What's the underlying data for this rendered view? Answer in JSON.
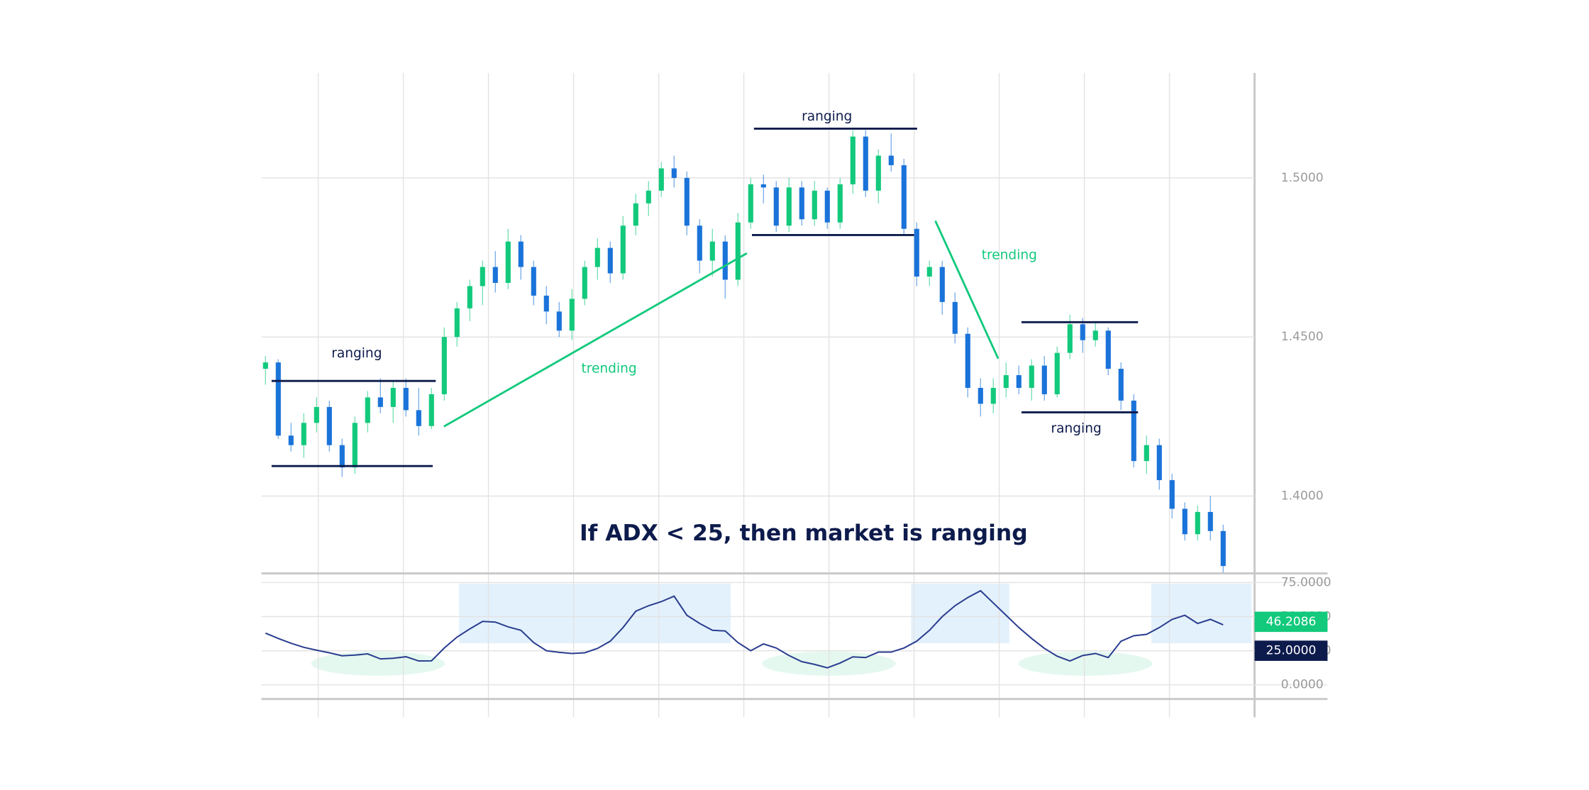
{
  "chart_data": [
    {
      "type": "candlestick",
      "title": "If ADX < 25, then market is ranging",
      "annotations": [
        "ranging",
        "trending",
        "ranging",
        "trending",
        "ranging"
      ],
      "open": [
        1.44,
        1.442,
        1.419,
        1.416,
        1.423,
        1.428,
        1.416,
        1.409,
        1.423,
        1.431,
        1.428,
        1.434,
        1.427,
        1.422,
        1.432,
        1.45,
        1.459,
        1.466,
        1.472,
        1.467,
        1.48,
        1.472,
        1.463,
        1.458,
        1.452,
        1.462,
        1.472,
        1.478,
        1.47,
        1.485,
        1.492,
        1.496,
        1.503,
        1.5,
        1.485,
        1.474,
        1.48,
        1.468,
        1.486,
        1.498,
        1.497,
        1.485,
        1.497,
        1.487,
        1.496,
        1.486,
        1.498,
        1.513,
        1.496,
        1.507,
        1.504,
        1.484,
        1.469,
        1.472,
        1.461,
        1.451,
        1.434,
        1.429,
        1.434,
        1.438,
        1.434,
        1.441,
        1.432,
        1.445,
        1.454,
        1.449,
        1.452,
        1.44,
        1.43,
        1.411,
        1.416,
        1.405,
        1.396,
        1.388,
        1.395,
        1.389
      ],
      "high": [
        1.444,
        1.443,
        1.423,
        1.426,
        1.431,
        1.43,
        1.418,
        1.425,
        1.433,
        1.437,
        1.436,
        1.437,
        1.434,
        1.434,
        1.453,
        1.461,
        1.468,
        1.474,
        1.477,
        1.484,
        1.482,
        1.474,
        1.466,
        1.461,
        1.465,
        1.474,
        1.481,
        1.48,
        1.488,
        1.495,
        1.499,
        1.505,
        1.507,
        1.502,
        1.487,
        1.484,
        1.482,
        1.489,
        1.5,
        1.501,
        1.499,
        1.5,
        1.499,
        1.499,
        1.497,
        1.5,
        1.515,
        1.515,
        1.509,
        1.514,
        1.506,
        1.486,
        1.474,
        1.474,
        1.464,
        1.453,
        1.437,
        1.437,
        1.442,
        1.441,
        1.443,
        1.444,
        1.447,
        1.457,
        1.456,
        1.455,
        1.453,
        1.442,
        1.432,
        1.419,
        1.418,
        1.407,
        1.398,
        1.397,
        1.4,
        1.391
      ],
      "low": [
        1.435,
        1.418,
        1.414,
        1.412,
        1.42,
        1.414,
        1.406,
        1.407,
        1.42,
        1.426,
        1.423,
        1.425,
        1.419,
        1.421,
        1.43,
        1.447,
        1.455,
        1.46,
        1.464,
        1.465,
        1.468,
        1.46,
        1.454,
        1.45,
        1.449,
        1.46,
        1.468,
        1.467,
        1.468,
        1.482,
        1.488,
        1.494,
        1.497,
        1.482,
        1.47,
        1.469,
        1.462,
        1.466,
        1.484,
        1.492,
        1.483,
        1.483,
        1.485,
        1.485,
        1.484,
        1.484,
        1.495,
        1.494,
        1.492,
        1.502,
        1.482,
        1.466,
        1.466,
        1.457,
        1.448,
        1.431,
        1.425,
        1.426,
        1.431,
        1.432,
        1.43,
        1.43,
        1.431,
        1.443,
        1.445,
        1.447,
        1.438,
        1.427,
        1.409,
        1.407,
        1.402,
        1.393,
        1.386,
        1.386,
        1.386,
        1.376
      ],
      "close": [
        1.442,
        1.419,
        1.416,
        1.423,
        1.428,
        1.416,
        1.409,
        1.423,
        1.431,
        1.428,
        1.434,
        1.427,
        1.422,
        1.432,
        1.45,
        1.459,
        1.466,
        1.472,
        1.467,
        1.48,
        1.472,
        1.463,
        1.458,
        1.452,
        1.462,
        1.472,
        1.478,
        1.47,
        1.485,
        1.492,
        1.496,
        1.503,
        1.5,
        1.485,
        1.474,
        1.48,
        1.468,
        1.486,
        1.498,
        1.497,
        1.485,
        1.497,
        1.487,
        1.496,
        1.486,
        1.498,
        1.513,
        1.496,
        1.507,
        1.504,
        1.484,
        1.469,
        1.472,
        1.461,
        1.451,
        1.434,
        1.429,
        1.434,
        1.438,
        1.434,
        1.441,
        1.432,
        1.445,
        1.454,
        1.449,
        1.452,
        1.44,
        1.43,
        1.411,
        1.416,
        1.405,
        1.396,
        1.388,
        1.395,
        1.389,
        1.378
      ],
      "up_color": "#12c97c",
      "down_color": "#1a73d9",
      "ylim": [
        1.376,
        1.533
      ],
      "yticks": [
        {
          "value": 1.4,
          "label": "1.4000"
        },
        {
          "value": 1.45,
          "label": "1.4500"
        },
        {
          "value": 1.5,
          "label": "1.5000"
        }
      ],
      "grid": true
    },
    {
      "type": "line",
      "series": [
        {
          "color": "#2a3d8f",
          "values": [
            37.9,
            34,
            30.5,
            27.5,
            25.4,
            23.5,
            21.3,
            21.8,
            22.7,
            19,
            19.5,
            20.6,
            17.5,
            17.6,
            27,
            35,
            41,
            46.5,
            46,
            42.5,
            40,
            31,
            25,
            23.8,
            23,
            23.5,
            26.7,
            32,
            42,
            54,
            58,
            61,
            65,
            51,
            45,
            40,
            39.5,
            31,
            25,
            30,
            27,
            21.5,
            17,
            15,
            12.5,
            16,
            20.5,
            20,
            24,
            24,
            27,
            32,
            40,
            50,
            58,
            64,
            69,
            60,
            51,
            42,
            34,
            26.7,
            21,
            17.5,
            21.5,
            23,
            20,
            32,
            36,
            37,
            42,
            48,
            51,
            45,
            48,
            44
          ]
        }
      ],
      "ylim": [
        -10.4,
        80.2
      ],
      "yticks": [
        {
          "value": 0,
          "label": "0.0000"
        },
        {
          "value": 25,
          "label": "25.0000"
        },
        {
          "value": 50,
          "label": "50.0000"
        },
        {
          "value": 75,
          "label": "75.0000"
        }
      ],
      "markers": [
        {
          "value": 46.2086,
          "label": "46.2086",
          "color": "#12c97c"
        },
        {
          "value": 25,
          "label": "25.0000",
          "color": "#0d1b4c"
        }
      ],
      "grid": true
    }
  ]
}
